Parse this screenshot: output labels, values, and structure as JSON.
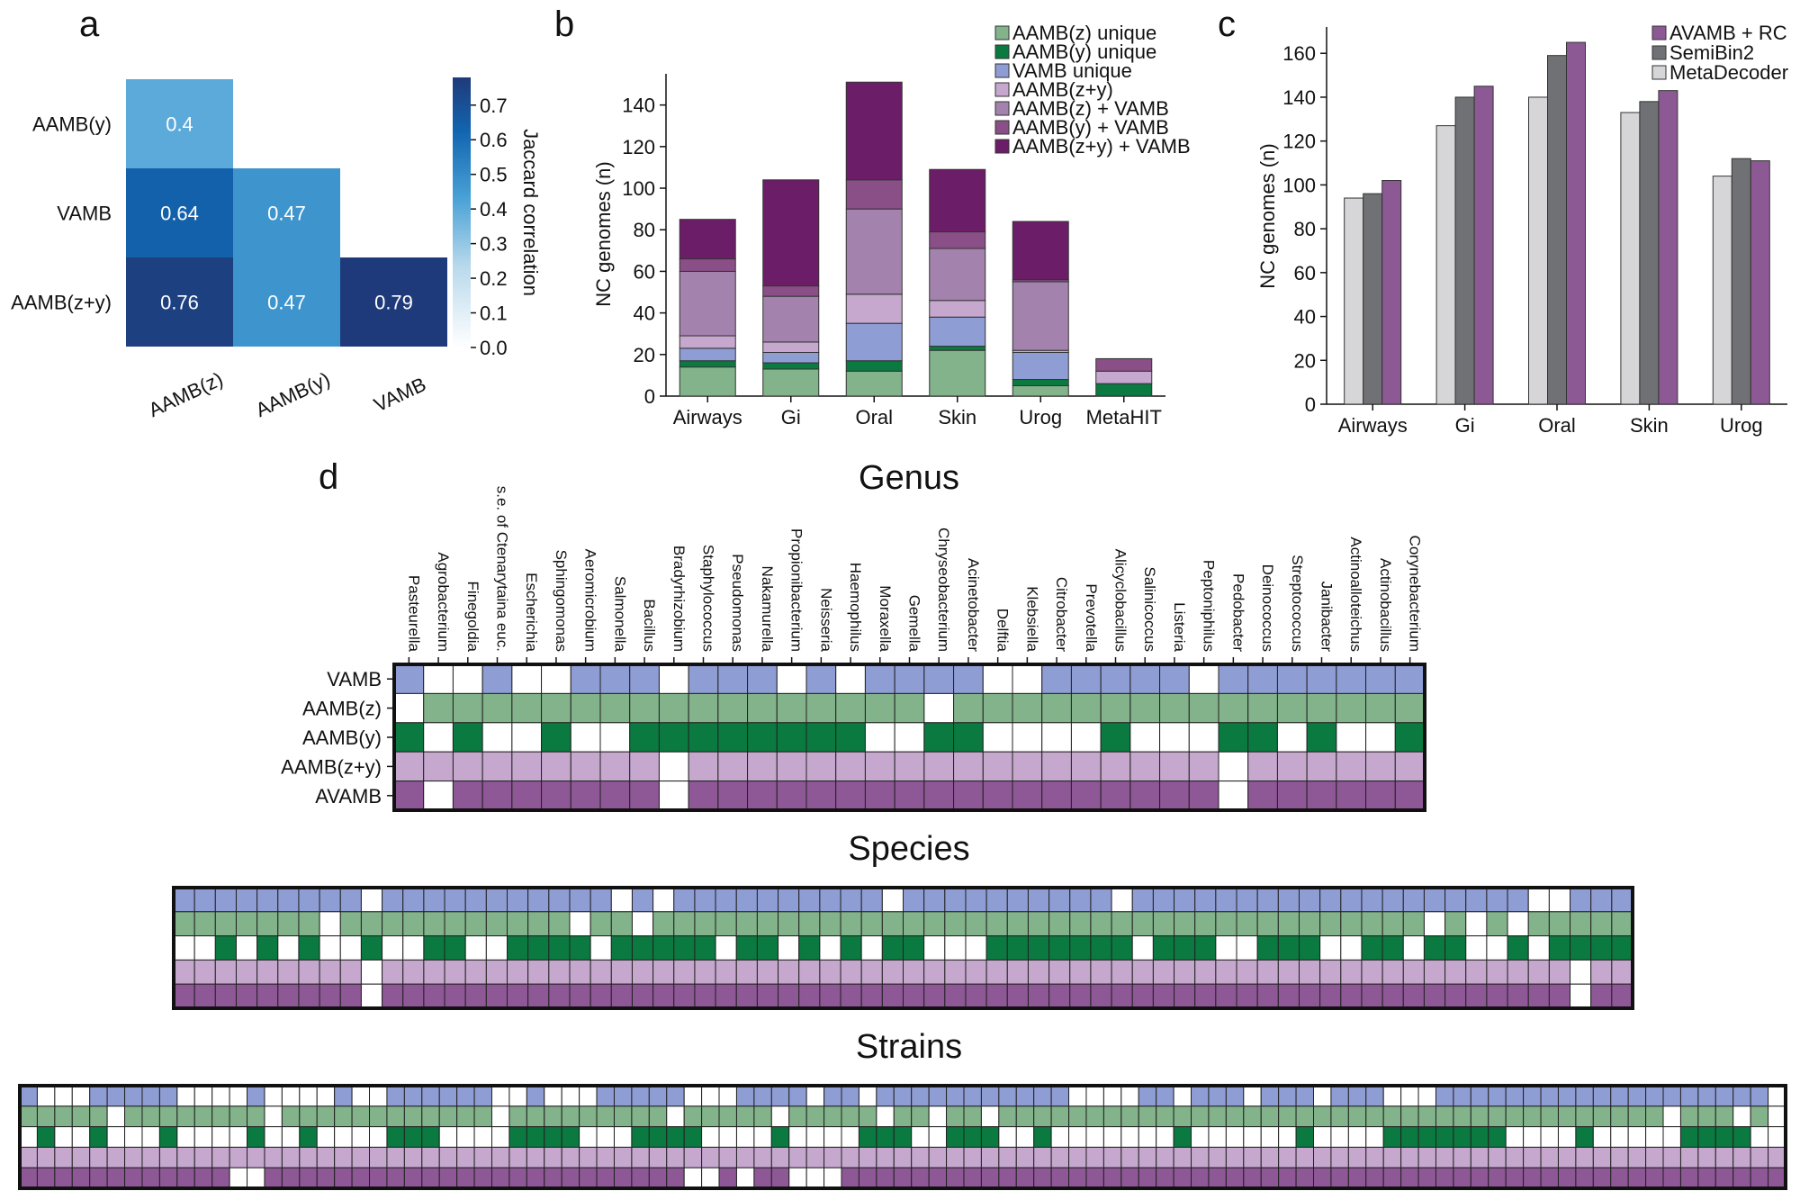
{
  "colors": {
    "vamb": "#8f9dd5",
    "aambz": "#82b38a",
    "aamby": "#0a7a40",
    "aambzy": "#c6a8cf",
    "avamb": "#8e5796",
    "aambz_vamb": "#a383ad",
    "aamby_vamb": "#8a4f86",
    "aambzy_vamb": "#6c1d68",
    "metadecoder": "#d6d6d8",
    "semibin2": "#707174",
    "avamb_rc": "#8c5995"
  },
  "chart_data": [
    {
      "panel": "a",
      "type": "heatmap",
      "rows": [
        "AAMB(y)",
        "VAMB",
        "AAMB(z+y)"
      ],
      "cols": [
        "AAMB(z)",
        "AAMB(y)",
        "VAMB"
      ],
      "cells": [
        {
          "row": 0,
          "col": 0,
          "value": 0.4,
          "label": "0.4"
        },
        {
          "row": 1,
          "col": 0,
          "value": 0.64,
          "label": "0.64"
        },
        {
          "row": 1,
          "col": 1,
          "value": 0.47,
          "label": "0.47"
        },
        {
          "row": 2,
          "col": 0,
          "value": 0.76,
          "label": "0.76"
        },
        {
          "row": 2,
          "col": 1,
          "value": 0.47,
          "label": "0.47"
        },
        {
          "row": 2,
          "col": 2,
          "value": 0.79,
          "label": "0.79"
        }
      ],
      "colorbar": {
        "label": "Jaccard correlation",
        "ticks": [
          "0.7",
          "0.6",
          "0.5",
          "0.4",
          "0.3",
          "0.2",
          "0.1",
          "0.0"
        ],
        "range": [
          0,
          0.78
        ]
      }
    },
    {
      "panel": "b",
      "type": "bar",
      "stacked": true,
      "categories": [
        "Airways",
        "Gi",
        "Oral",
        "Skin",
        "Urog",
        "MetaHIT"
      ],
      "ylabel": "NC genomes (n)",
      "ylim": [
        0,
        155
      ],
      "yticks": [
        "0",
        "20",
        "40",
        "60",
        "80",
        "100",
        "120",
        "140"
      ],
      "series": [
        {
          "name": "AAMB(z) unique",
          "key": "aambz",
          "values": [
            14,
            13,
            12,
            22,
            5,
            0
          ]
        },
        {
          "name": "AAMB(y) unique",
          "key": "aamby",
          "values": [
            3,
            3,
            5,
            2,
            3,
            6
          ]
        },
        {
          "name": "VAMB unique",
          "key": "vamb",
          "values": [
            6,
            5,
            18,
            14,
            13,
            0
          ]
        },
        {
          "name": "AAMB(z+y)",
          "key": "aambzy",
          "values": [
            6,
            5,
            14,
            8,
            1,
            6
          ]
        },
        {
          "name": "AAMB(z) + VAMB",
          "key": "aambz_vamb",
          "values": [
            31,
            22,
            41,
            25,
            33,
            0
          ]
        },
        {
          "name": "AAMB(y) + VAMB",
          "key": "aamby_vamb",
          "values": [
            6,
            5,
            14,
            8,
            1,
            6
          ]
        },
        {
          "name": "AAMB(z+y) + VAMB",
          "key": "aambzy_vamb",
          "values": [
            19,
            51,
            47,
            30,
            28,
            0
          ]
        }
      ]
    },
    {
      "panel": "c",
      "type": "bar",
      "categories": [
        "Airways",
        "Gi",
        "Oral",
        "Skin",
        "Urog"
      ],
      "ylabel": "NC genomes (n)",
      "ylim": [
        0,
        172
      ],
      "yticks": [
        "0",
        "20",
        "40",
        "60",
        "80",
        "100",
        "120",
        "140",
        "160"
      ],
      "series": [
        {
          "name": "MetaDecoder",
          "key": "metadecoder",
          "values": [
            94,
            127,
            140,
            133,
            104
          ]
        },
        {
          "name": "SemiBin2",
          "key": "semibin2",
          "values": [
            96,
            140,
            159,
            138,
            112
          ]
        },
        {
          "name": "AVAMB + RC",
          "key": "avamb_rc",
          "values": [
            102,
            145,
            165,
            143,
            111
          ]
        }
      ],
      "legend_order": [
        "AVAMB + RC",
        "SemiBin2",
        "MetaDecoder"
      ]
    },
    {
      "panel": "d",
      "type": "heatmap",
      "rows": [
        "VAMB",
        "AAMB(z)",
        "AAMB(y)",
        "AAMB(z+y)",
        "AVAMB"
      ],
      "row_keys": [
        "vamb",
        "aambz",
        "aamby",
        "aambzy",
        "avamb"
      ],
      "sections": [
        {
          "title": "Genus",
          "cols": [
            "Pasteurella",
            "Agrobacterium",
            "Finegoldia",
            "s.e. of Ctenarytaina euc.",
            "Escherichia",
            "Sphingomonas",
            "Aeromicrobium",
            "Salmonella",
            "Bacillus",
            "Bradyrhizobium",
            "Staphylococcus",
            "Pseudomonas",
            "Nakamurella",
            "Propionibacterium",
            "Neisseria",
            "Haemophilus",
            "Moraxella",
            "Gemella",
            "Chryseobacterium",
            "Acinetobacter",
            "Delftia",
            "Klebsiella",
            "Citrobacter",
            "Prevotella",
            "Alicyclobacillus",
            "Salinicoccus",
            "Listeria",
            "Peptoniphilus",
            "Pedobacter",
            "Deinococcus",
            "Streptococcus",
            "Janibacter",
            "Actinoalloteichus",
            "Actinobacillus",
            "Corynebacterium"
          ],
          "grid": [
            "10010011101110101111001111101111111",
            "01111111111111111101111111111111111",
            "10100100111111110011000010001101001",
            "11111111101111111111111111110111111",
            "10111111101111111111111111110111111"
          ]
        },
        {
          "title": "Species",
          "cols": [],
          "grid": [
            "1111111110111111111110101111111111011111111110111111111111111111100111",
            "1111111011111111111011011111111111111111111111111111111111110101011111",
            "0010101001001100111101111101101010110001111111011100111001101100101111",
            "1111111110111111111111111111111111111111111111111111111111111111111011",
            "1111111110111111111111111111111111111111111111111111111111111111111011"
          ]
        },
        {
          "title": "Strains",
          "cols": [],
          "grid": [
            "10001111100001000010011111100100011111000111101101111111111100001101110111011100011111111111111111110",
            "11111011111111011111111111101111111110111110111110110110111111111111111111111111111111111111110111010",
            "01001000100001001000011100001111000111100001000011100111001000000010000001000011111110000100000111100",
            "11111111111111111111111111111111111111111111111111111111111111111111111111111111111111111111111111111",
            "11111111111100111111111111111111111111001011000111111111111111111111111111111111111111111111111111111"
          ]
        }
      ]
    }
  ],
  "labels": {
    "panel_a": "a",
    "panel_b": "b",
    "panel_c": "c",
    "panel_d": "d"
  }
}
